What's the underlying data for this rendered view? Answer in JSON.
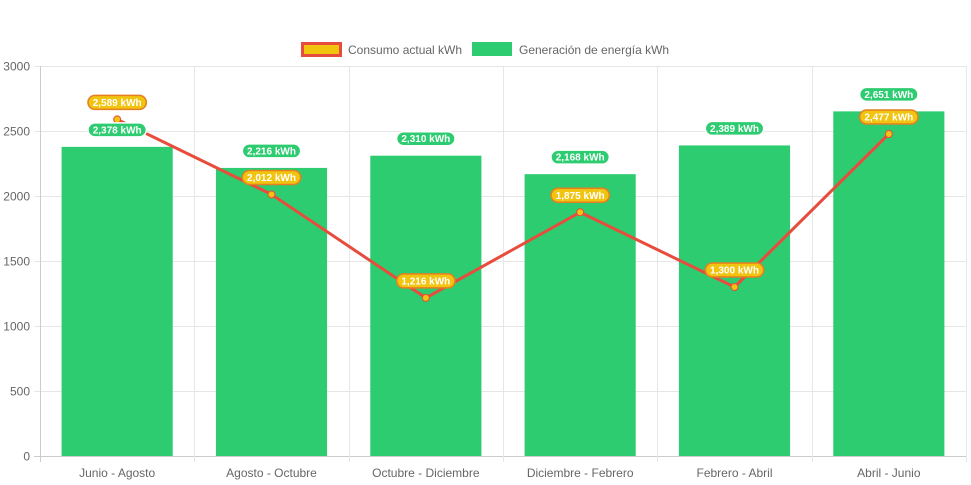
{
  "chart_data": {
    "type": "bar",
    "categories": [
      "Junio - Agosto",
      "Agosto - Octubre",
      "Octubre - Diciembre",
      "Diciembre - Febrero",
      "Febrero - Abril",
      "Abril - Junio"
    ],
    "series": [
      {
        "name": "Generación de energía kWh",
        "type": "bar",
        "color": "#2ecc71",
        "values": [
          2378,
          2216,
          2310,
          2168,
          2389,
          2651
        ],
        "labels": [
          "2,378 kWh",
          "2,216 kWh",
          "2,310 kWh",
          "2,168 kWh",
          "2,389 kWh",
          "2,651 kWh"
        ]
      },
      {
        "name": "Consumo actual kWh",
        "type": "line",
        "color": "#e74c3c",
        "fill_color": "#f1c40f",
        "values": [
          2589,
          2012,
          1216,
          1875,
          1300,
          2477
        ],
        "labels": [
          "2,589 kWh",
          "2,012 kWh",
          "1,216 kWh",
          "1,875 kWh",
          "1,300 kWh",
          "2,477 kWh"
        ]
      }
    ],
    "ylim": [
      0,
      3000
    ],
    "yticks": [
      "0",
      "500",
      "1000",
      "1500",
      "2000",
      "2500",
      "3000"
    ],
    "grid": true,
    "legend_position": "top"
  }
}
